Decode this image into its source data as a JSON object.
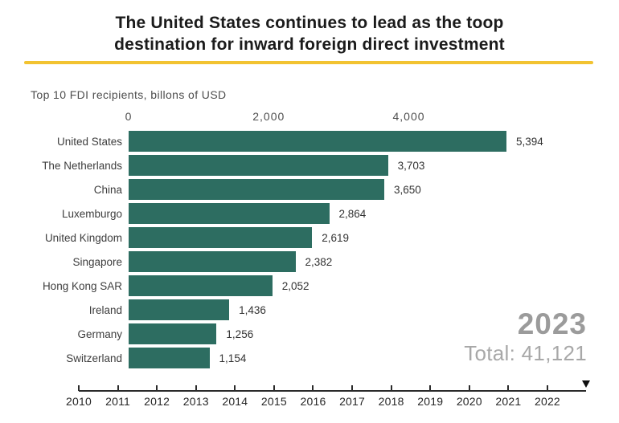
{
  "header": {
    "title_line1": "The United States continues to lead as the toop",
    "title_line2": "destination for inward foreign direct investment"
  },
  "chart_data": {
    "type": "bar",
    "orientation": "horizontal",
    "subtitle": "Top 10 FDI recipients, billons of USD",
    "categories": [
      "United States",
      "The Netherlands",
      "China",
      "Luxemburgo",
      "United Kingdom",
      "Singapore",
      "Hong Kong SAR",
      "Ireland",
      "Germany",
      "Switzerland"
    ],
    "values": [
      5394,
      3703,
      3650,
      2864,
      2619,
      2382,
      2052,
      1436,
      1256,
      1154
    ],
    "value_labels": [
      "5,394",
      "3,703",
      "3,650",
      "2,864",
      "2,619",
      "2,382",
      "2,052",
      "1,436",
      "1,256",
      "1,154"
    ],
    "value_axis": {
      "ticks": [
        0,
        2000,
        4000
      ],
      "tick_labels": [
        "0",
        "2,000",
        "4,000"
      ],
      "range": [
        0,
        5394
      ],
      "position": "top"
    },
    "grid": false,
    "legend": false,
    "bar_color": "#2d6d61"
  },
  "annotations": {
    "year": "2023",
    "total": "Total: 41,121"
  },
  "timeline": {
    "years": [
      "2010",
      "2011",
      "2012",
      "2013",
      "2014",
      "2015",
      "2016",
      "2017",
      "2018",
      "2019",
      "2020",
      "2021",
      "2022"
    ],
    "marker_icon": "triangle-down"
  },
  "colors": {
    "bar": "#2d6d61",
    "accent_rule": "#f2c331",
    "year_text": "#9b9b9b",
    "total_text": "#a8a8a8"
  }
}
